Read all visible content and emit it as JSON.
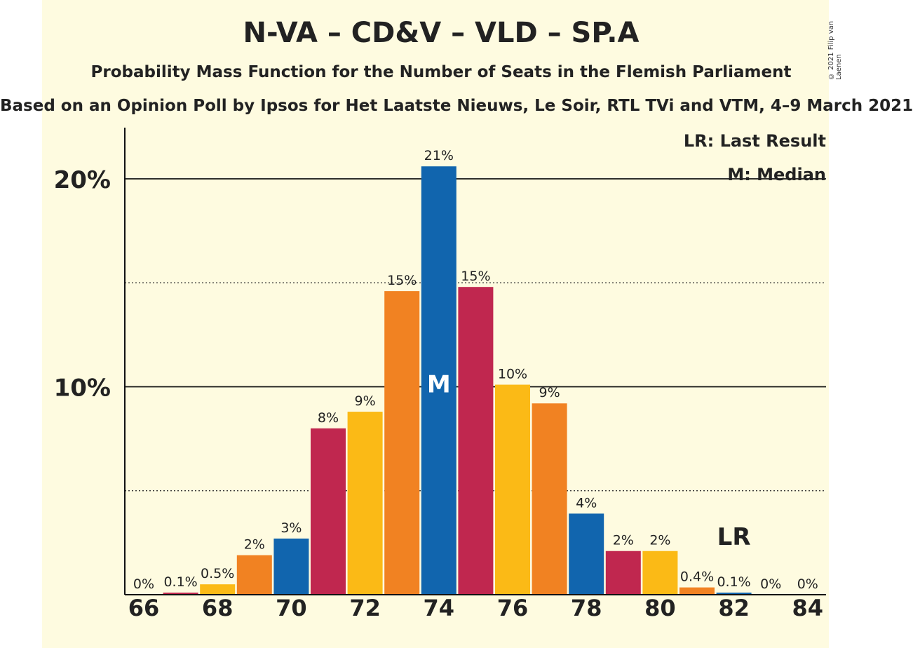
{
  "title": "N-VA – CD&V – VLD – SP.A",
  "subtitle": "Probability Mass Function for the Number of Seats in the Flemish Parliament",
  "subtitle2": "Based on an Opinion Poll by Ipsos for Het Laatste Nieuws, Le Soir, RTL TVi and VTM, 4–9 March 2021",
  "credit": "© 2021 Filip van Laenen",
  "legend": {
    "lr": "LR: Last Result",
    "m": "M: Median"
  },
  "markers": {
    "median_label": "M",
    "last_result_label": "LR"
  },
  "colors": {
    "blue": "#1165ae",
    "red": "#c0274f",
    "yellow": "#fbba16",
    "orange": "#f18222",
    "background": "#fefbe0"
  },
  "chart_data": {
    "type": "bar",
    "x": [
      66,
      67,
      68,
      69,
      70,
      71,
      72,
      73,
      74,
      75,
      76,
      77,
      78,
      79,
      80,
      81,
      82,
      83,
      84
    ],
    "values": [
      0,
      0.1,
      0.5,
      1.9,
      2.7,
      8.0,
      8.8,
      14.6,
      20.6,
      14.8,
      10.1,
      9.2,
      3.9,
      2.1,
      2.1,
      0.35,
      0.1,
      0,
      0
    ],
    "data_labels": [
      "0%",
      "0.1%",
      "0.5%",
      "2%",
      "3%",
      "8%",
      "9%",
      "15%",
      "21%",
      "15%",
      "10%",
      "9%",
      "4%",
      "2%",
      "2%",
      "0.4%",
      "0.1%",
      "0%",
      "0%"
    ],
    "bar_colors": [
      "blue",
      "red",
      "yellow",
      "orange",
      "blue",
      "red",
      "yellow",
      "orange",
      "blue",
      "red",
      "yellow",
      "orange",
      "blue",
      "red",
      "yellow",
      "orange",
      "blue",
      "red",
      "yellow"
    ],
    "x_tick_labels": [
      "66",
      "68",
      "70",
      "72",
      "74",
      "76",
      "78",
      "80",
      "82",
      "84"
    ],
    "y_tick_labels": [
      "10%",
      "20%"
    ],
    "ylim": [
      0,
      22
    ],
    "median": 74,
    "last_result": 82,
    "grid": "solid at 10% and 20%, dotted at 5% and 15%",
    "legend_position": "top-right"
  }
}
